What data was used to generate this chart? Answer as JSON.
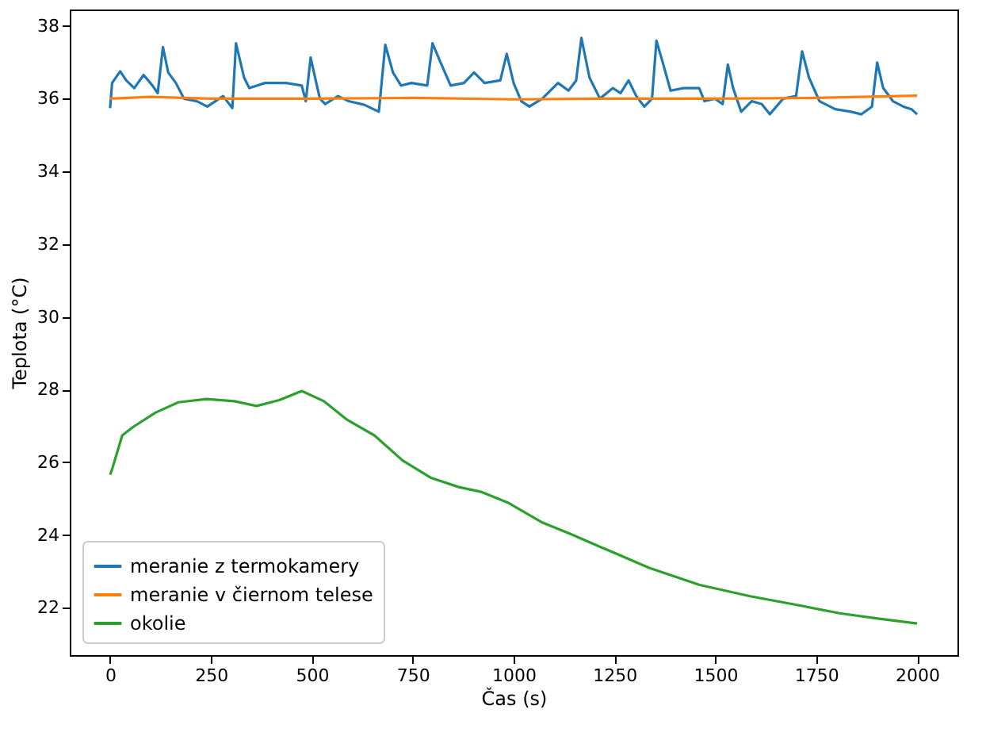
{
  "chart_data": {
    "type": "line",
    "xlabel": "Čas (s)",
    "ylabel": "Teplota (°C)",
    "xlim": [
      -100,
      2100
    ],
    "ylim": [
      20.7,
      38.45
    ],
    "xticks": [
      0,
      250,
      500,
      750,
      1000,
      1250,
      1500,
      1750,
      2000
    ],
    "yticks": [
      22,
      24,
      26,
      28,
      30,
      32,
      34,
      36,
      38
    ],
    "grid": false,
    "legend": "bottom left",
    "marker": "none",
    "line_style": "solid",
    "series": [
      {
        "name": "meranie z termokamery",
        "color": "#1f77b4",
        "x": [
          0,
          5,
          25,
          40,
          60,
          83,
          105,
          118,
          131,
          144,
          163,
          183,
          215,
          241,
          280,
          303,
          312,
          332,
          345,
          384,
          436,
          475,
          485,
          497,
          511,
          520,
          533,
          565,
          591,
          630,
          666,
          682,
          701,
          721,
          747,
          786,
          799,
          818,
          844,
          877,
          902,
          928,
          967,
          983,
          1000,
          1019,
          1039,
          1071,
          1110,
          1136,
          1155,
          1168,
          1188,
          1214,
          1246,
          1265,
          1285,
          1304,
          1324,
          1343,
          1354,
          1369,
          1389,
          1421,
          1460,
          1473,
          1499,
          1518,
          1531,
          1544,
          1564,
          1590,
          1615,
          1635,
          1668,
          1700,
          1715,
          1732,
          1758,
          1797,
          1836,
          1862,
          1888,
          1901,
          1916,
          1940,
          1966,
          1986,
          2000
        ],
        "values": [
          35.74,
          36.43,
          36.75,
          36.5,
          36.29,
          36.65,
          36.36,
          36.15,
          37.42,
          36.72,
          36.43,
          36.0,
          35.93,
          35.78,
          36.07,
          35.74,
          37.52,
          36.58,
          36.29,
          36.43,
          36.43,
          36.36,
          35.93,
          37.13,
          36.43,
          36.0,
          35.85,
          36.07,
          35.93,
          35.83,
          35.64,
          37.48,
          36.72,
          36.36,
          36.43,
          36.36,
          37.52,
          37.02,
          36.36,
          36.43,
          36.72,
          36.43,
          36.5,
          37.23,
          36.43,
          35.93,
          35.78,
          36.0,
          36.43,
          36.22,
          36.5,
          37.67,
          36.58,
          36.0,
          36.29,
          36.15,
          36.5,
          36.07,
          35.78,
          36.0,
          37.59,
          37.02,
          36.22,
          36.29,
          36.29,
          35.93,
          36.0,
          35.85,
          36.94,
          36.29,
          35.64,
          35.93,
          35.85,
          35.57,
          36.0,
          36.07,
          37.3,
          36.58,
          35.93,
          35.71,
          35.64,
          35.57,
          35.78,
          36.99,
          36.29,
          35.93,
          35.78,
          35.71,
          35.57
        ]
      },
      {
        "name": "meranie v čiernom telese",
        "color": "#ff7f0e",
        "x": [
          0,
          100,
          250,
          500,
          750,
          1000,
          1250,
          1500,
          1750,
          2000
        ],
        "values": [
          36.0,
          36.05,
          36.0,
          36.0,
          36.02,
          35.98,
          36.0,
          36.0,
          36.02,
          36.08
        ]
      },
      {
        "name": "okolie",
        "color": "#2ca02c",
        "x": [
          0,
          5,
          30,
          58,
          113,
          169,
          238,
          308,
          363,
          419,
          475,
          530,
          586,
          655,
          725,
          794,
          864,
          919,
          988,
          1072,
          1141,
          1239,
          1336,
          1461,
          1586,
          1697,
          1808,
          1906,
          2000
        ],
        "values": [
          25.66,
          25.81,
          26.74,
          26.98,
          27.37,
          27.65,
          27.74,
          27.68,
          27.55,
          27.71,
          27.96,
          27.68,
          27.18,
          26.74,
          26.05,
          25.58,
          25.32,
          25.19,
          24.88,
          24.34,
          24.03,
          23.56,
          23.1,
          22.63,
          22.32,
          22.09,
          21.85,
          21.7,
          21.57
        ]
      }
    ]
  }
}
